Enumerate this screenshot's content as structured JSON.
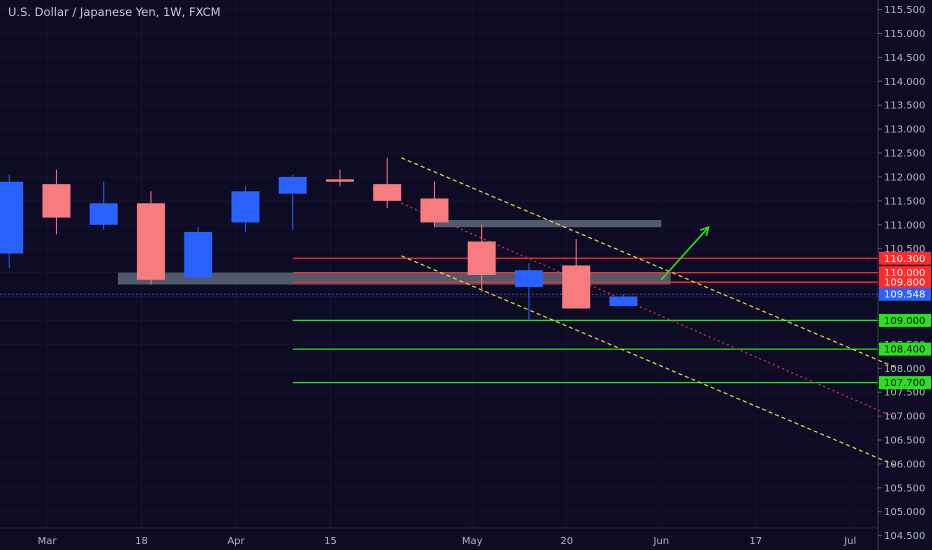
{
  "header": {
    "title": "U.S. Dollar / Japanese Yen, 1W, FXCM"
  },
  "colors": {
    "background": "#0e0b24",
    "bull": "#2962ff",
    "bear": "#f77c80",
    "resistance": "#ff2b2b",
    "support": "#2be01c",
    "zone": "#6c7c8c",
    "channel": "#e6d44a",
    "midline": "#e0303a",
    "arrow": "#2be01c",
    "current_price": "#2962ff"
  },
  "chart_data": {
    "type": "candlestick",
    "title": "U.S. Dollar / Japanese Yen, 1W, FXCM",
    "y_axis": {
      "ylim": [
        104.2,
        115.7
      ],
      "ticks": [
        104.5,
        105.0,
        105.5,
        106.0,
        106.5,
        107.0,
        107.5,
        108.0,
        108.5,
        109.0,
        109.5,
        110.0,
        110.5,
        111.0,
        111.5,
        112.0,
        112.5,
        113.0,
        113.5,
        114.0,
        114.5,
        115.0,
        115.5
      ],
      "tick_labels": [
        "104.500",
        "105.000",
        "105.500",
        "106.000",
        "106.500",
        "107.000",
        "107.500",
        "108.000",
        "108.500",
        "109.000",
        "109.500",
        "110.000",
        "110.500",
        "111.000",
        "111.500",
        "112.000",
        "112.500",
        "113.000",
        "113.500",
        "114.000",
        "114.500",
        "115.000",
        "115.500"
      ]
    },
    "x_axis": {
      "labels": [
        {
          "text": "Mar",
          "week": 0
        },
        {
          "text": "18",
          "week": 2
        },
        {
          "text": "Apr",
          "week": 4
        },
        {
          "text": "15",
          "week": 6
        },
        {
          "text": "May",
          "week": 9
        },
        {
          "text": "20",
          "week": 11
        },
        {
          "text": "Jun",
          "week": 13
        },
        {
          "text": "17",
          "week": 15
        },
        {
          "text": "Jul",
          "week": 17
        }
      ]
    },
    "candles": [
      {
        "week": -0.8,
        "open": 110.4,
        "high": 112.05,
        "low": 110.1,
        "close": 111.9
      },
      {
        "week": 0.2,
        "open": 111.85,
        "high": 112.15,
        "low": 110.8,
        "close": 111.15
      },
      {
        "week": 1.2,
        "open": 111.0,
        "high": 111.9,
        "low": 110.9,
        "close": 111.45
      },
      {
        "week": 2.2,
        "open": 111.45,
        "high": 111.7,
        "low": 109.75,
        "close": 109.85
      },
      {
        "week": 3.2,
        "open": 109.9,
        "high": 110.95,
        "low": 109.85,
        "close": 110.85
      },
      {
        "week": 4.2,
        "open": 111.05,
        "high": 111.8,
        "low": 110.85,
        "close": 111.7
      },
      {
        "week": 5.2,
        "open": 111.65,
        "high": 112.05,
        "low": 110.9,
        "close": 112.0
      },
      {
        "week": 6.2,
        "open": 111.95,
        "high": 112.15,
        "low": 111.8,
        "close": 111.9
      },
      {
        "week": 7.2,
        "open": 111.85,
        "high": 112.4,
        "low": 111.35,
        "close": 111.5
      },
      {
        "week": 8.2,
        "open": 111.55,
        "high": 111.9,
        "low": 110.95,
        "close": 111.05
      },
      {
        "week": 9.2,
        "open": 110.65,
        "high": 111.0,
        "low": 109.6,
        "close": 109.95
      },
      {
        "week": 10.2,
        "open": 109.7,
        "high": 110.2,
        "low": 109.0,
        "close": 110.05
      },
      {
        "week": 11.2,
        "open": 110.15,
        "high": 110.7,
        "low": 109.25,
        "close": 109.25
      },
      {
        "week": 12.2,
        "open": 109.3,
        "high": 109.55,
        "low": 109.3,
        "close": 109.5
      }
    ],
    "horizontal_levels": [
      {
        "price": 110.3,
        "label": "110.300",
        "kind": "resistance"
      },
      {
        "price": 110.0,
        "label": "110.000",
        "kind": "resistance"
      },
      {
        "price": 109.8,
        "label": "109.800",
        "kind": "resistance"
      },
      {
        "price": 109.0,
        "label": "109.000",
        "kind": "support"
      },
      {
        "price": 108.4,
        "label": "108.400",
        "kind": "support"
      },
      {
        "price": 107.7,
        "label": "107.700",
        "kind": "support"
      }
    ],
    "current_price": {
      "price": 109.548,
      "label": "109.548"
    },
    "zones": [
      {
        "week_start": 1.5,
        "week_end": 13.2,
        "price_low": 109.75,
        "price_high": 110.0
      },
      {
        "week_start": 8.2,
        "week_end": 13.0,
        "price_low": 110.95,
        "price_high": 111.1
      }
    ],
    "channel": {
      "upper": [
        [
          7.5,
          112.4
        ],
        [
          18.0,
          108.0
        ]
      ],
      "middle": [
        [
          7.5,
          111.45
        ],
        [
          18.0,
          106.95
        ]
      ],
      "lower": [
        [
          7.5,
          110.35
        ],
        [
          18.0,
          105.95
        ]
      ]
    },
    "arrow": {
      "from": [
        13.0,
        109.85
      ],
      "to": [
        14.0,
        110.95
      ]
    }
  }
}
